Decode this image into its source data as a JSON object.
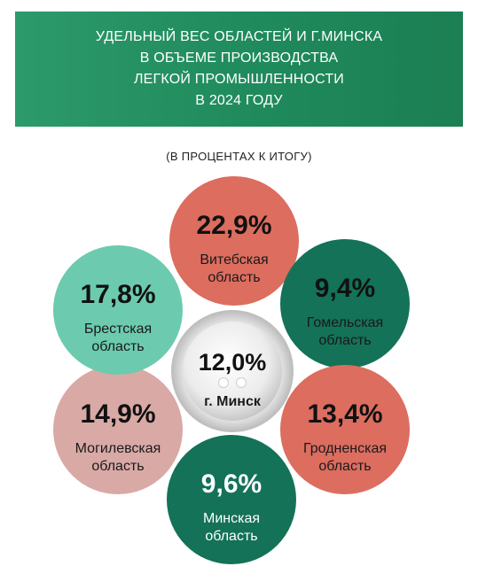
{
  "header": {
    "title_lines": [
      "УДЕЛЬНЫЙ ВЕС ОБЛАСТЕЙ И Г.МИНСКА",
      "В ОБЪЕМЕ ПРОИЗВОДСТВА",
      "ЛЕГКОЙ ПРОМЫШЛЕННОСТИ",
      "В 2024 ГОДУ"
    ],
    "subtitle": "(В ПРОЦЕНТАХ К ИТОГУ)"
  },
  "colors": {
    "banner": "#1f8a5c",
    "salmon": "#dc6d5f",
    "dark_green": "#137258",
    "mint": "#6ccbae",
    "pink": "#d9a9a6",
    "center_ring": "#d9d9d9"
  },
  "chart_data": {
    "type": "pie",
    "unit": "%",
    "title": "УДЕЛЬНЫЙ ВЕС ОБЛАСТЕЙ И Г.МИНСКА В ОБЪЕМЕ ПРОИЗВОДСТВА ЛЕГКОЙ ПРОМЫШЛЕННОСТИ В 2024 ГОДУ",
    "categories": [
      "Витебская область",
      "Гомельская область",
      "Гродненская область",
      "Минская область",
      "Могилевская область",
      "Брестская область",
      "г. Минск"
    ],
    "values": [
      22.9,
      9.4,
      13.4,
      9.6,
      14.9,
      17.8,
      12.0
    ],
    "items": [
      {
        "value_label": "22,9%",
        "lines": [
          "Витебская",
          "область"
        ],
        "color": "#dc6d5f",
        "text_color": "#1a1a1a"
      },
      {
        "value_label": "9,4%",
        "lines": [
          "Гомельская",
          "область"
        ],
        "color": "#137258",
        "text_color": "#1a1a1a"
      },
      {
        "value_label": "13,4%",
        "lines": [
          "Гродненская",
          "область"
        ],
        "color": "#dc6d5f",
        "text_color": "#1a1a1a"
      },
      {
        "value_label": "9,6%",
        "lines": [
          "Минская",
          "область"
        ],
        "color": "#137258",
        "text_color": "#ffffff"
      },
      {
        "value_label": "14,9%",
        "lines": [
          "Могилевская",
          "область"
        ],
        "color": "#d9a9a6",
        "text_color": "#1a1a1a"
      },
      {
        "value_label": "17,8%",
        "lines": [
          "Брестская",
          "область"
        ],
        "color": "#6ccbae",
        "text_color": "#1a1a1a"
      }
    ],
    "center": {
      "value_label": "12,0%",
      "label": "г. Минск"
    }
  }
}
